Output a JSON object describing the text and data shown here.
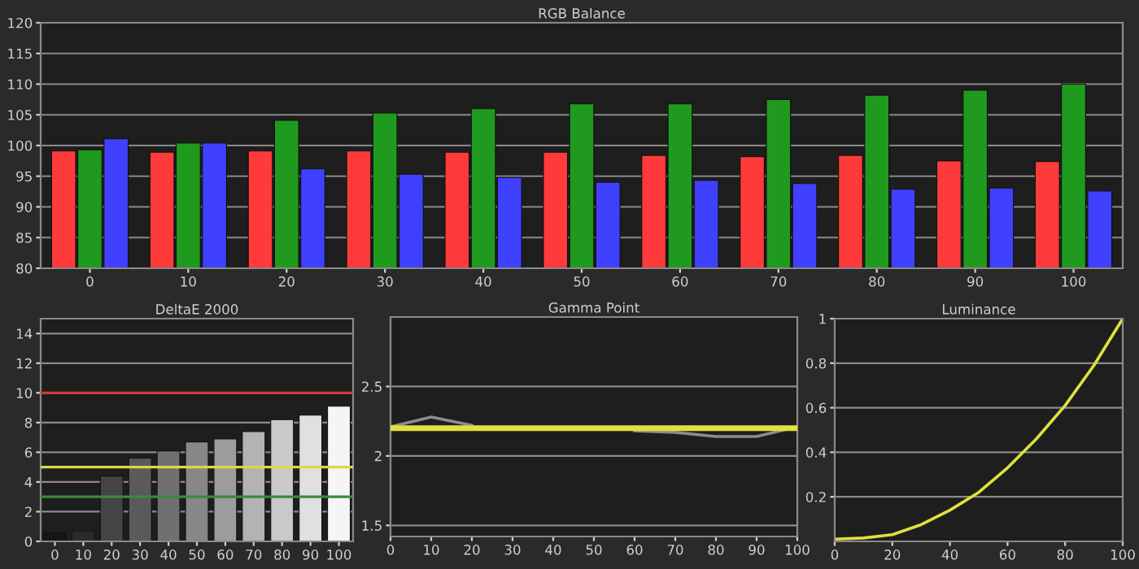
{
  "chart_data": [
    {
      "type": "bar",
      "title": "RGB Balance",
      "categories": [
        "0",
        "10",
        "20",
        "30",
        "40",
        "50",
        "60",
        "70",
        "80",
        "90",
        "100"
      ],
      "ylim": [
        80,
        120
      ],
      "yticks": [
        80,
        85,
        90,
        95,
        100,
        105,
        110,
        115,
        120
      ],
      "grid": "y",
      "series": [
        {
          "color": "#ff3a3a",
          "values": [
            99.1,
            98.9,
            99.1,
            99.1,
            98.9,
            98.9,
            98.4,
            98.2,
            98.4,
            97.5,
            97.4
          ]
        },
        {
          "color": "#1f9a1f",
          "values": [
            99.3,
            100.4,
            104.1,
            105.3,
            106.0,
            106.8,
            106.8,
            107.5,
            108.2,
            109.0,
            110.0
          ]
        },
        {
          "color": "#4040ff",
          "values": [
            101.1,
            100.4,
            96.2,
            95.3,
            94.8,
            94.0,
            94.3,
            93.8,
            92.9,
            93.1,
            92.6
          ]
        }
      ]
    },
    {
      "type": "bar",
      "title": "DeltaE 2000",
      "categories": [
        "0",
        "10",
        "20",
        "30",
        "40",
        "50",
        "60",
        "70",
        "80",
        "90",
        "100"
      ],
      "ylim": [
        0,
        15
      ],
      "yticks": [
        0,
        2,
        4,
        6,
        8,
        10,
        12,
        14
      ],
      "grid": "y",
      "values": [
        0.6,
        0.7,
        4.4,
        5.6,
        6.1,
        6.7,
        6.9,
        7.4,
        8.2,
        8.5,
        9.1
      ],
      "colors": [
        "#151515",
        "#2a2a2a",
        "#444444",
        "#5a5a5a",
        "#707070",
        "#878787",
        "#9c9c9c",
        "#b3b3b3",
        "#c9c9c9",
        "#e0e0e0",
        "#f5f5f5"
      ],
      "ref_lines": [
        {
          "axis": "y",
          "value": 10,
          "color": "#d03a3a"
        },
        {
          "axis": "y",
          "value": 5,
          "color": "#d8d84a"
        },
        {
          "axis": "y",
          "value": 3,
          "color": "#3a8a3a"
        }
      ]
    },
    {
      "type": "line",
      "title": "Gamma Point",
      "xlim": [
        0,
        100
      ],
      "xticks": [
        0,
        10,
        20,
        30,
        40,
        50,
        60,
        70,
        80,
        90,
        100
      ],
      "ylim": [
        1.42,
        3.0
      ],
      "yticks": [
        1.5,
        2,
        2.5
      ],
      "grid": "y",
      "series": [
        {
          "color": "#8c8c8c",
          "x": [
            0,
            10,
            20,
            30,
            40,
            50,
            60,
            70,
            80,
            90,
            100
          ],
          "values": [
            2.21,
            2.28,
            2.22,
            null,
            null,
            null,
            2.18,
            2.17,
            2.14,
            2.14,
            2.21
          ]
        }
      ],
      "ref_lines": [
        {
          "axis": "y",
          "value": 2.2,
          "color": "#e0e040"
        }
      ]
    },
    {
      "type": "line",
      "title": "Luminance",
      "xlim": [
        0,
        100
      ],
      "xticks": [
        0,
        20,
        40,
        60,
        80,
        100
      ],
      "ylim": [
        0,
        1
      ],
      "yticks": [
        0.2,
        0.4,
        0.6,
        0.8,
        1
      ],
      "grid": "y",
      "series": [
        {
          "color": "#e0e040",
          "x": [
            0,
            10,
            20,
            30,
            40,
            50,
            60,
            70,
            80,
            90,
            100
          ],
          "values": [
            0.01,
            0.015,
            0.03,
            0.075,
            0.14,
            0.22,
            0.33,
            0.46,
            0.61,
            0.79,
            1.0
          ]
        }
      ]
    }
  ]
}
